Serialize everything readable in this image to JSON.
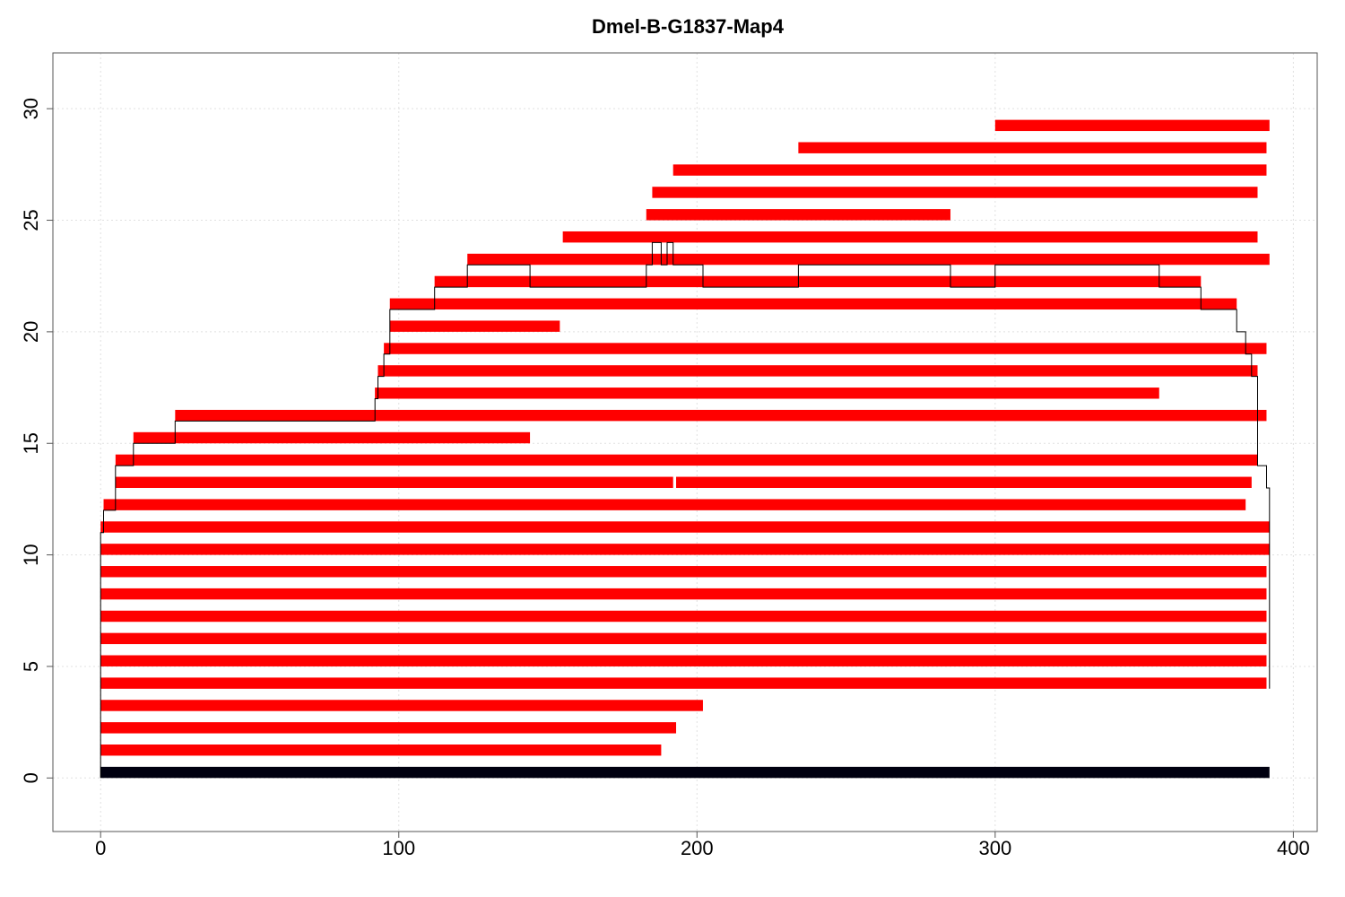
{
  "chart_data": {
    "type": "bar",
    "title": "Dmel-B-G1837-Map4",
    "xlabel": "",
    "ylabel": "",
    "xlim": [
      -16,
      408
    ],
    "ylim": [
      -2.4,
      32.5
    ],
    "x_ticks": [
      0,
      100,
      200,
      300,
      400
    ],
    "y_ticks": [
      0,
      5,
      10,
      15,
      20,
      25,
      30
    ],
    "grid": true,
    "colors": {
      "reference": "#000010",
      "segment": "#ff0000",
      "coverage_line": "#000000"
    },
    "reference": {
      "start": 0,
      "end": 392,
      "row": 0
    },
    "segments": [
      {
        "row": 1,
        "start": 0,
        "end": 188
      },
      {
        "row": 2,
        "start": 0,
        "end": 193
      },
      {
        "row": 3,
        "start": 0,
        "end": 202
      },
      {
        "row": 4,
        "start": 0,
        "end": 391
      },
      {
        "row": 5,
        "start": 0,
        "end": 391
      },
      {
        "row": 6,
        "start": 0,
        "end": 391
      },
      {
        "row": 7,
        "start": 0,
        "end": 391
      },
      {
        "row": 8,
        "start": 0,
        "end": 391
      },
      {
        "row": 9,
        "start": 0,
        "end": 391
      },
      {
        "row": 10,
        "start": 0,
        "end": 392
      },
      {
        "row": 11,
        "start": 0,
        "end": 392
      },
      {
        "row": 12,
        "start": 1,
        "end": 384
      },
      {
        "row": 13,
        "start": 5,
        "end": 192
      },
      {
        "row": 13,
        "start": 193,
        "end": 386
      },
      {
        "row": 14,
        "start": 5,
        "end": 388
      },
      {
        "row": 15,
        "start": 11,
        "end": 144
      },
      {
        "row": 16,
        "start": 25,
        "end": 391
      },
      {
        "row": 17,
        "start": 92,
        "end": 355
      },
      {
        "row": 18,
        "start": 93,
        "end": 388
      },
      {
        "row": 19,
        "start": 95,
        "end": 391
      },
      {
        "row": 20,
        "start": 97,
        "end": 154
      },
      {
        "row": 21,
        "start": 97,
        "end": 381
      },
      {
        "row": 22,
        "start": 112,
        "end": 369
      },
      {
        "row": 23,
        "start": 123,
        "end": 392
      },
      {
        "row": 24,
        "start": 155,
        "end": 388
      },
      {
        "row": 25,
        "start": 183,
        "end": 285
      },
      {
        "row": 26,
        "start": 185,
        "end": 388
      },
      {
        "row": 27,
        "start": 192,
        "end": 391
      },
      {
        "row": 28,
        "start": 234,
        "end": 391
      },
      {
        "row": 29,
        "start": 300,
        "end": 392
      }
    ],
    "coverage": {
      "x": [
        0,
        0,
        1,
        1,
        2,
        2,
        5,
        5,
        11,
        11,
        25,
        25,
        92,
        92,
        93,
        93,
        95,
        95,
        97,
        97,
        112,
        112,
        123,
        123,
        144,
        144,
        183,
        183,
        185,
        185,
        188,
        188,
        190,
        190,
        192,
        192,
        193,
        193,
        202,
        202,
        234,
        234,
        285,
        285,
        300,
        300,
        355,
        355,
        369,
        369,
        381,
        381,
        384,
        384,
        386,
        386,
        388,
        388,
        391,
        391,
        392,
        392
      ],
      "y": [
        0,
        11,
        11,
        12,
        12,
        12,
        12,
        14,
        14,
        15,
        15,
        16,
        16,
        17,
        17,
        18,
        18,
        19,
        19,
        21,
        21,
        22,
        22,
        23,
        23,
        22,
        22,
        23,
        23,
        24,
        24,
        23,
        23,
        24,
        24,
        23,
        23,
        23,
        23,
        22,
        22,
        23,
        23,
        22,
        22,
        23,
        23,
        22,
        22,
        21,
        21,
        20,
        20,
        19,
        19,
        18,
        18,
        14,
        14,
        13,
        13,
        4
      ]
    }
  }
}
